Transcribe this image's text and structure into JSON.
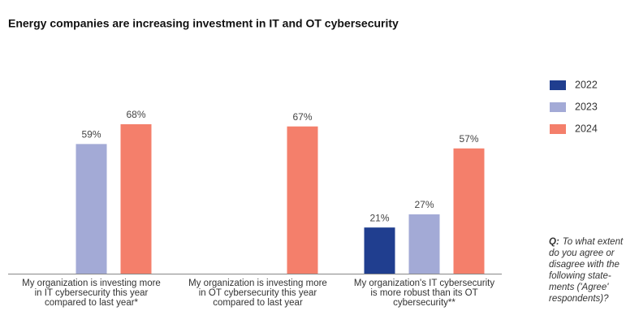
{
  "chart_data": {
    "type": "bar",
    "title": "Energy companies are increasing investment in IT and OT cybersecurity",
    "categories": [
      [
        "My organization is investing more",
        "in IT cybersecurity this year",
        "compared to last year*"
      ],
      [
        "My organization is investing more",
        "in OT cybersecurity this year",
        "compared to last year"
      ],
      [
        "My organization's IT cybersecurity",
        "is more robust than its OT",
        "cybersecurity**"
      ]
    ],
    "series": [
      {
        "name": "2022",
        "color": "#203e8f",
        "values": [
          null,
          null,
          21
        ],
        "value_labels": [
          null,
          null,
          "21%"
        ]
      },
      {
        "name": "2023",
        "color": "#a3aad6",
        "values": [
          59,
          null,
          27
        ],
        "value_labels": [
          "59%",
          null,
          "27%"
        ]
      },
      {
        "name": "2024",
        "color": "#f47f6b",
        "values": [
          68,
          67,
          57
        ],
        "value_labels": [
          "68%",
          "67%",
          "57%"
        ]
      }
    ],
    "note_label": "Q:",
    "note_lines": [
      "To what extent",
      "do you agree or",
      "disagree with the",
      "following state-",
      "ments ('Agree'",
      "respondents)?"
    ]
  }
}
